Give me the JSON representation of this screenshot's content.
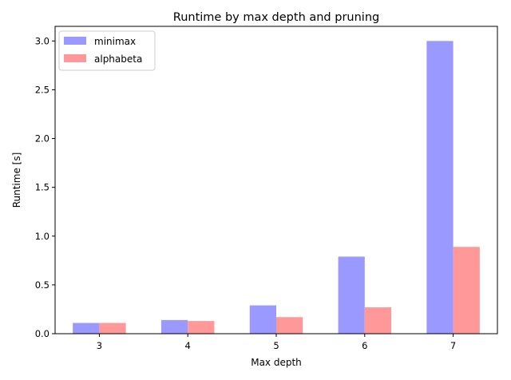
{
  "chart_data": {
    "type": "bar",
    "title": "Runtime by max depth and pruning",
    "xlabel": "Max depth",
    "ylabel": "Runtime [s]",
    "categories": [
      "3",
      "4",
      "5",
      "6",
      "7"
    ],
    "series": [
      {
        "name": "minimax",
        "color": "#9999ff",
        "values": [
          0.11,
          0.14,
          0.29,
          0.79,
          3.0
        ]
      },
      {
        "name": "alphabeta",
        "color": "#ff9999",
        "values": [
          0.11,
          0.13,
          0.17,
          0.27,
          0.89
        ]
      }
    ],
    "ylim": [
      0,
      3.15
    ],
    "yticks": [
      "0.0",
      "0.5",
      "1.0",
      "1.5",
      "2.0",
      "2.5",
      "3.0"
    ],
    "legend_position": "top-left",
    "grid": false
  }
}
